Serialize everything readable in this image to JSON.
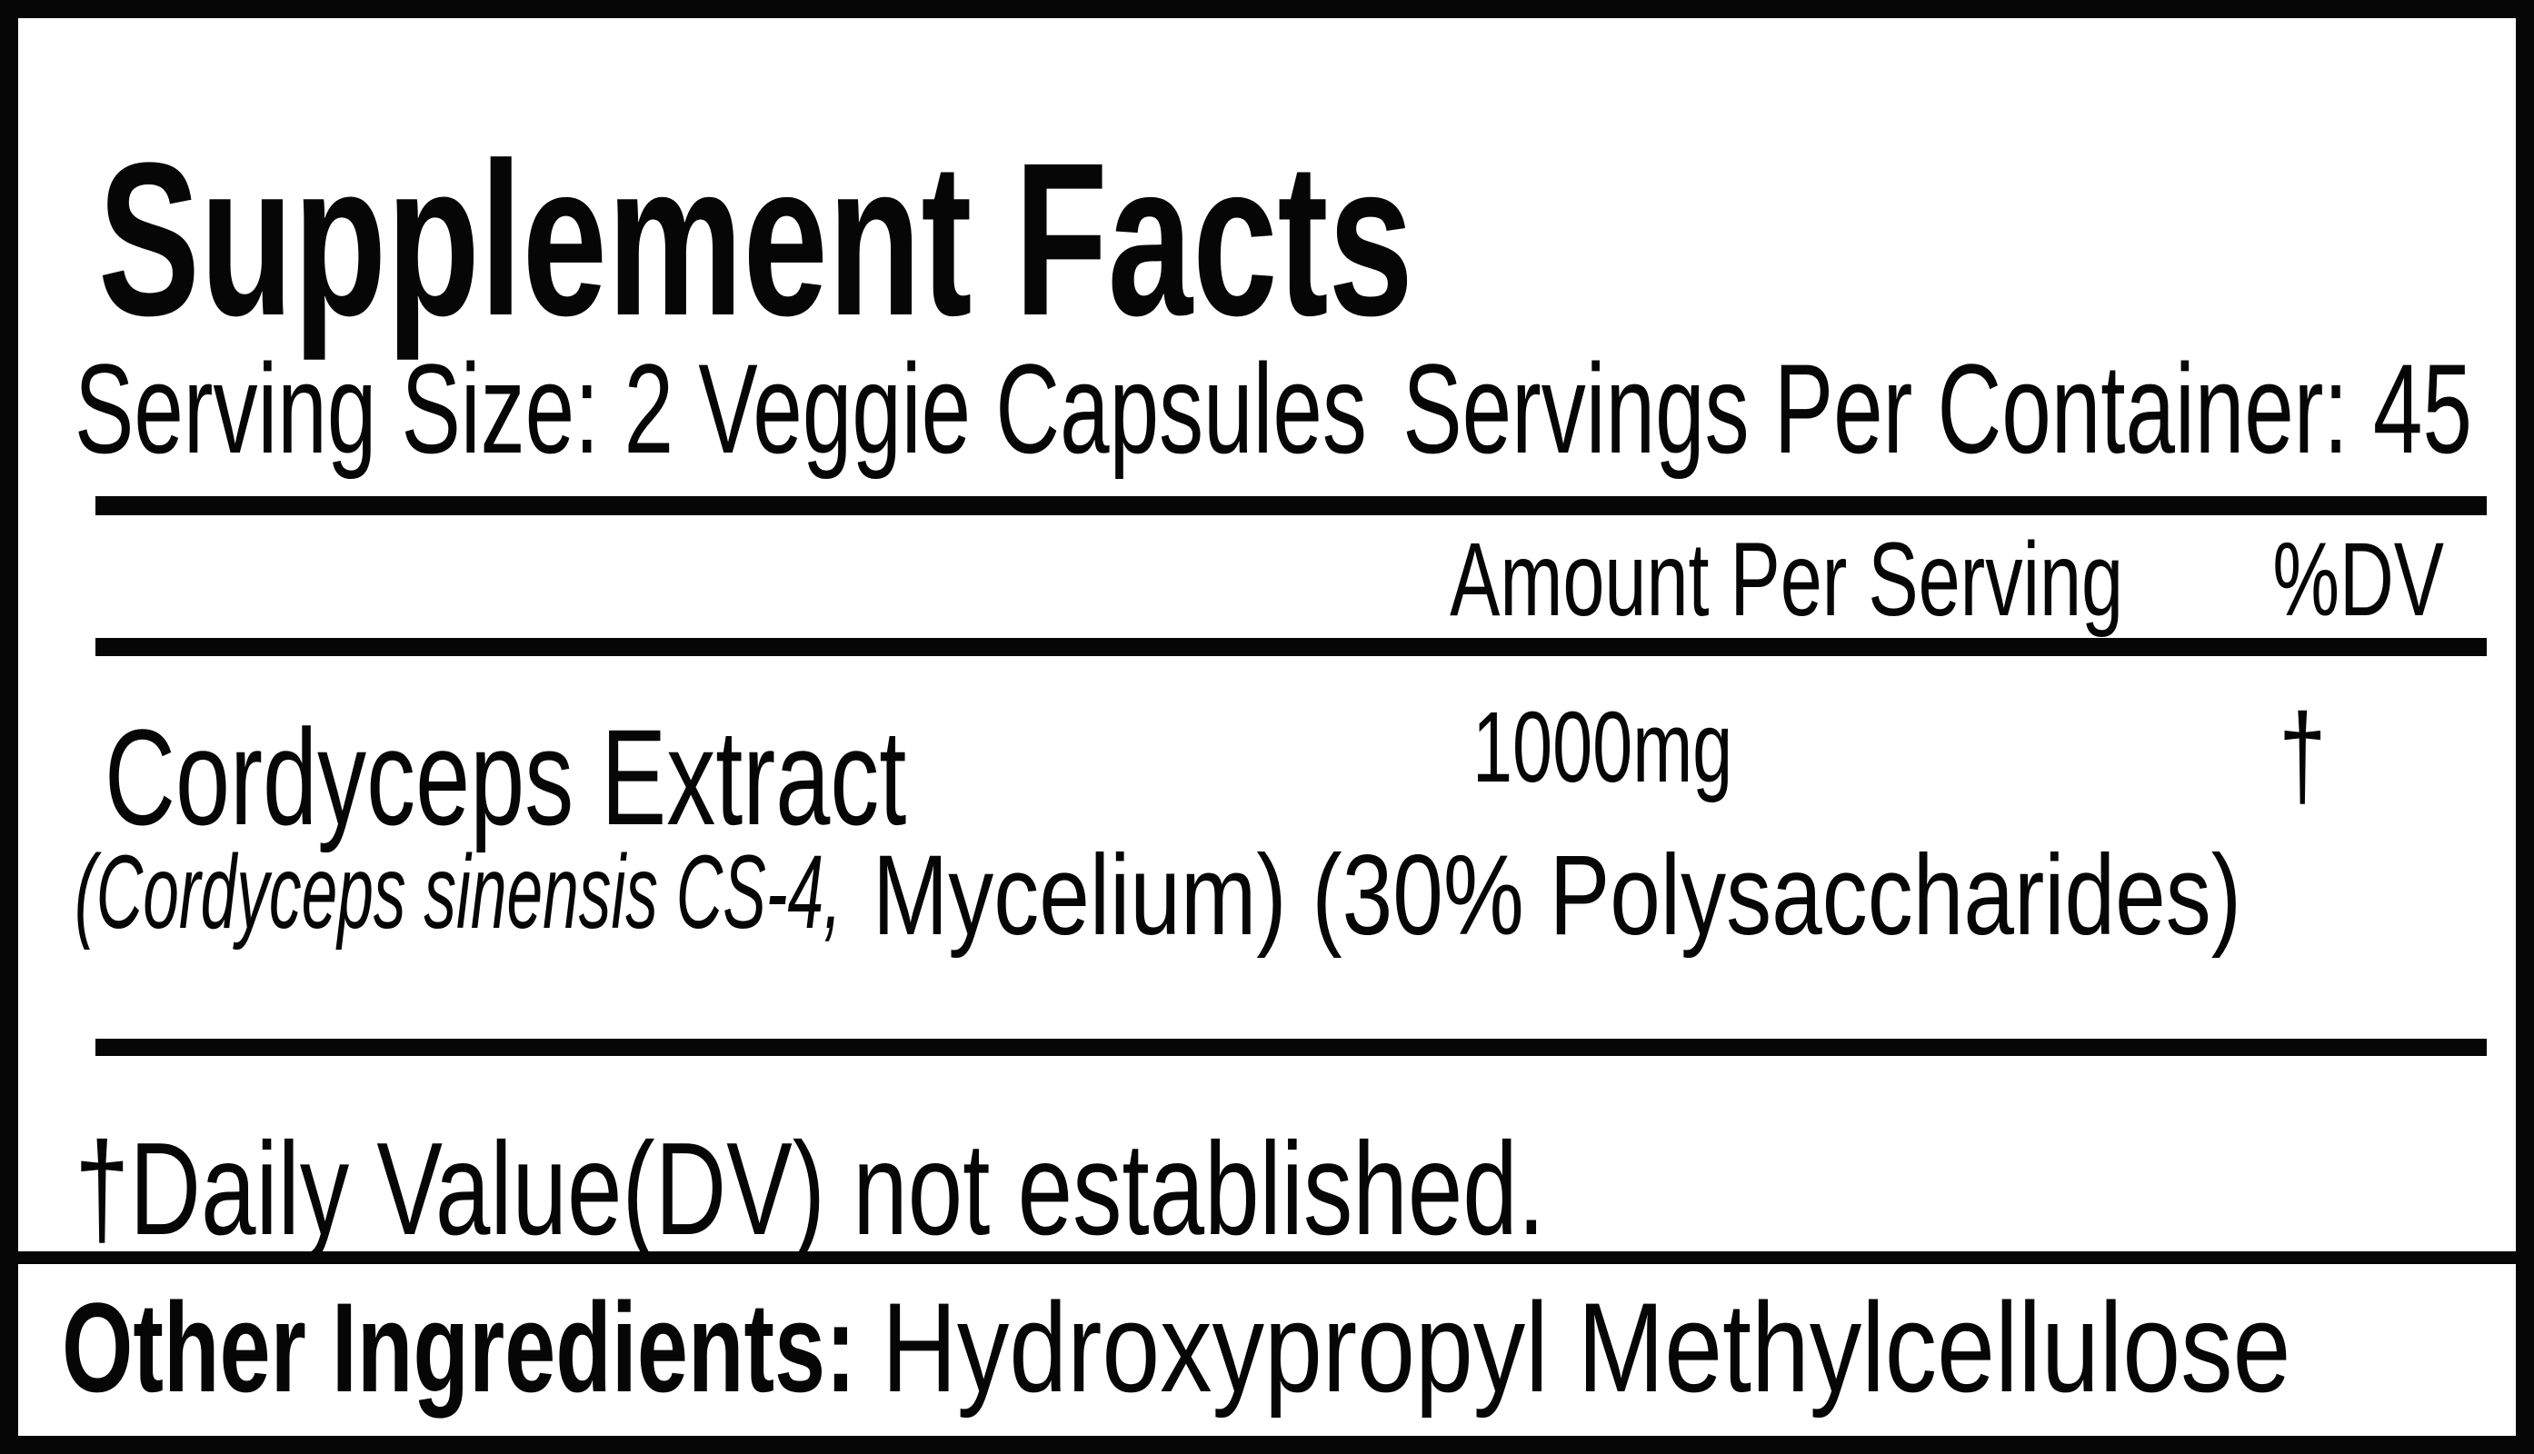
{
  "panel": {
    "title": "Supplement Facts",
    "serving_size": "Serving Size: 2 Veggie Capsules",
    "servings_per_container": "Servings Per Container: 45",
    "columns": {
      "amount": "Amount Per Serving",
      "daily_value": "%DV"
    },
    "ingredients": [
      {
        "name": "Cordyceps Extract",
        "detail_botanical": "(Cordyceps sinensis CS-4,",
        "detail_rest": "Mycelium) (30% Polysaccharides)",
        "amount": "1000mg",
        "daily_value": "†"
      }
    ],
    "footnote": "†Daily Value(DV) not established.",
    "other_ingredients": {
      "label": "Other Ingredients:",
      "value": "Hydroxypropyl Methylcellulose"
    },
    "colors": {
      "ink": "#060606",
      "background": "#ffffff"
    }
  }
}
